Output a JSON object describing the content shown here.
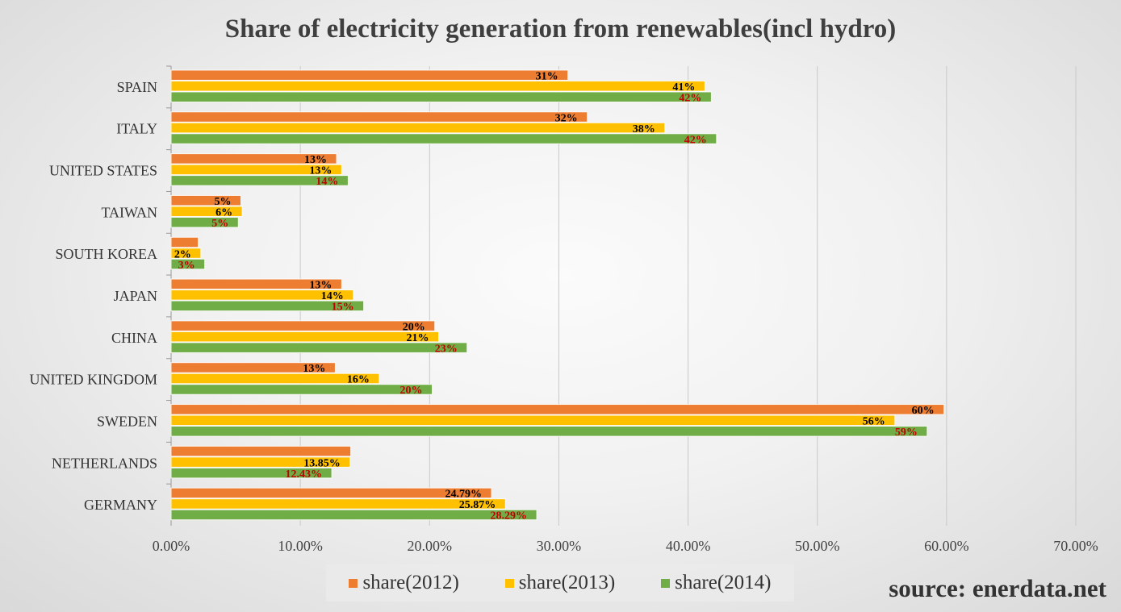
{
  "chart_data": {
    "type": "bar",
    "orientation": "horizontal",
    "title": "Share of electricity generation from renewables(incl hydro)",
    "categories": [
      "SPAIN",
      "ITALY",
      "UNITED STATES",
      "TAIWAN",
      "SOUTH KOREA",
      "JAPAN",
      "CHINA",
      "UNITED KINGDOM",
      "SWEDEN",
      "NETHERLANDS",
      "GERMANY"
    ],
    "series": [
      {
        "name": "share(2012)",
        "color": "#ed7d31",
        "label_color": "#000000",
        "values": [
          30.7,
          32.2,
          12.8,
          5.4,
          2.1,
          13.2,
          20.4,
          12.7,
          59.8,
          13.9,
          24.79
        ],
        "labels": [
          "31%",
          "32%",
          "13%",
          "5%",
          "",
          "13%",
          "20%",
          "13%",
          "60%",
          "",
          "24.79%"
        ]
      },
      {
        "name": "share(2013)",
        "color": "#ffc000",
        "label_color": "#000000",
        "values": [
          41.3,
          38.2,
          13.2,
          5.5,
          2.3,
          14.1,
          20.7,
          16.1,
          56.0,
          13.85,
          25.87
        ],
        "labels": [
          "41%",
          "38%",
          "13%",
          "6%",
          "2%",
          "14%",
          "21%",
          "16%",
          "56%",
          "13.85%",
          "25.87%"
        ]
      },
      {
        "name": "share(2014)",
        "color": "#70ad47",
        "label_color": "#c00000",
        "values": [
          41.8,
          42.2,
          13.7,
          5.2,
          2.6,
          14.9,
          22.9,
          20.2,
          58.5,
          12.43,
          28.29
        ],
        "labels": [
          "42%",
          "42%",
          "14%",
          "5%",
          "3%",
          "15%",
          "23%",
          "20%",
          "59%",
          "12.43%",
          "28.29%"
        ]
      }
    ],
    "xlim": [
      0,
      70
    ],
    "xticks": [
      0,
      10,
      20,
      30,
      40,
      50,
      60,
      70
    ],
    "xtick_labels": [
      "0.00%",
      "10.00%",
      "20.00%",
      "30.00%",
      "40.00%",
      "50.00%",
      "60.00%",
      "70.00%"
    ],
    "grid": true,
    "legend_position": "bottom"
  },
  "source_note": "source: enerdata.net"
}
